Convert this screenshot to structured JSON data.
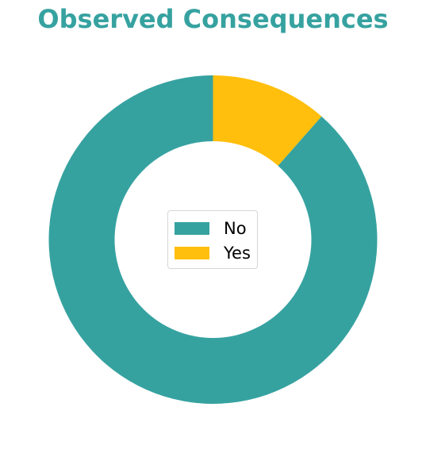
{
  "chart_data": {
    "type": "pie",
    "variant": "donut",
    "title": "Observed Consequences",
    "categories": [
      "No",
      "Yes"
    ],
    "values": [
      88.5,
      11.5
    ],
    "colors": [
      "#36a2a0",
      "#ffbf0c"
    ],
    "legend": {
      "placement": "center",
      "entries": [
        "No",
        "Yes"
      ]
    }
  },
  "colors": {
    "title": "#36a2a0",
    "background": "#ffffff"
  }
}
